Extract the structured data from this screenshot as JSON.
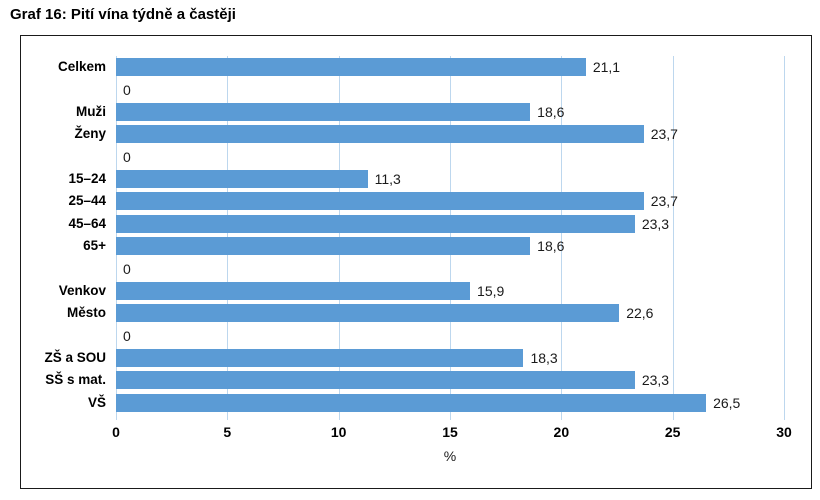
{
  "title": "Graf 16: Pití vína týdně a častěji",
  "chart_data": {
    "type": "bar",
    "orientation": "horizontal",
    "title": "Graf 16: Pití vína týdně a častěji",
    "xlabel": "%",
    "ylabel": "",
    "xlim": [
      0,
      30
    ],
    "xticks": [
      0,
      5,
      10,
      15,
      20,
      25,
      30
    ],
    "grid": true,
    "legend": "none",
    "decimal_separator": ",",
    "bar_color": "#5B9BD5",
    "gridline_color": "#BDD7EE",
    "rows": [
      {
        "label": "Celkem",
        "value": 21.1
      },
      {
        "label": "",
        "value": 0
      },
      {
        "label": "Muži",
        "value": 18.6
      },
      {
        "label": "Ženy",
        "value": 23.7
      },
      {
        "label": "",
        "value": 0
      },
      {
        "label": "15–24",
        "value": 11.3
      },
      {
        "label": "25–44",
        "value": 23.7
      },
      {
        "label": "45–64",
        "value": 23.3
      },
      {
        "label": "65+",
        "value": 18.6
      },
      {
        "label": "",
        "value": 0
      },
      {
        "label": "Venkov",
        "value": 15.9
      },
      {
        "label": "Město",
        "value": 22.6
      },
      {
        "label": "",
        "value": 0
      },
      {
        "label": "ZŠ a SOU",
        "value": 18.3
      },
      {
        "label": "SŠ s mat.",
        "value": 23.3
      },
      {
        "label": "VŠ",
        "value": 26.5
      }
    ]
  }
}
